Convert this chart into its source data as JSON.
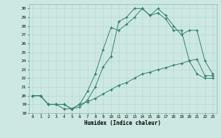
{
  "xlabel": "Humidex (Indice chaleur)",
  "background_color": "#cde8e2",
  "grid_color": "#b0d5ce",
  "line_color": "#2e7d6e",
  "xlim": [
    -0.5,
    23.5
  ],
  "ylim": [
    18,
    30.5
  ],
  "xticks": [
    0,
    1,
    2,
    3,
    4,
    5,
    6,
    7,
    8,
    9,
    10,
    11,
    12,
    13,
    14,
    15,
    16,
    17,
    18,
    19,
    20,
    21,
    22,
    23
  ],
  "yticks": [
    18,
    19,
    20,
    21,
    22,
    23,
    24,
    25,
    26,
    27,
    28,
    29,
    30
  ],
  "line1_x": [
    0,
    1,
    2,
    3,
    4,
    5,
    6,
    7,
    8,
    9,
    10,
    11,
    12,
    13,
    14,
    15,
    16,
    17,
    18,
    19,
    20,
    21,
    22,
    23
  ],
  "line1_y": [
    20,
    20,
    19,
    19,
    18.5,
    18.5,
    18.7,
    19.5,
    21,
    23.3,
    24.5,
    28.5,
    29,
    30,
    30,
    29.2,
    29.5,
    28.8,
    27.5,
    27.5,
    24,
    22.5,
    22.0,
    22.0
  ],
  "line2_x": [
    0,
    1,
    2,
    3,
    4,
    5,
    6,
    7,
    8,
    9,
    10,
    11,
    12,
    13,
    14,
    15,
    16,
    17,
    18,
    19,
    20,
    21,
    22,
    23
  ],
  "line2_y": [
    20,
    20,
    19,
    19,
    19,
    18.5,
    19,
    20.5,
    22.5,
    25.3,
    27.8,
    27.5,
    28.2,
    29,
    30,
    29.2,
    30,
    29.2,
    28,
    27,
    27.5,
    27.5,
    24.0,
    22.5
  ],
  "line3_x": [
    0,
    1,
    2,
    3,
    4,
    5,
    6,
    7,
    8,
    9,
    10,
    11,
    12,
    13,
    14,
    15,
    16,
    17,
    18,
    19,
    20,
    21,
    22,
    23
  ],
  "line3_y": [
    20,
    20,
    19,
    19,
    19,
    18.5,
    19,
    19.3,
    19.7,
    20.2,
    20.7,
    21.2,
    21.5,
    22.0,
    22.5,
    22.7,
    23.0,
    23.2,
    23.5,
    23.7,
    24.0,
    24.2,
    22.3,
    22.3
  ]
}
